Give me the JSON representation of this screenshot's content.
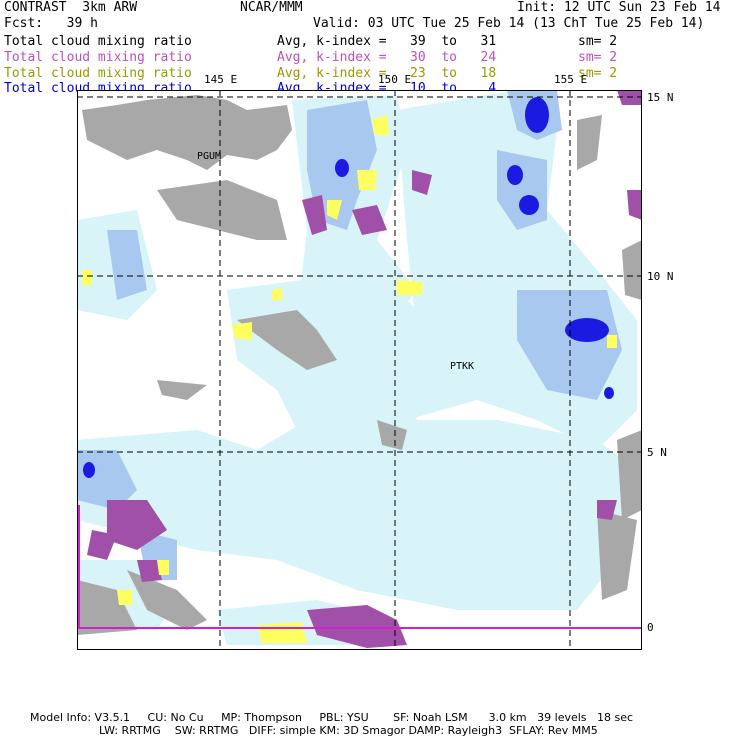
{
  "header": {
    "model": "CONTRAST  3km ARW",
    "org": "NCAR/MMM",
    "init": "Init: 12 UTC Sun 23 Feb 14",
    "fcst": "Fcst:   39 h",
    "valid": "Valid: 03 UTC Tue 25 Feb 14 (13 ChT Tue 25 Feb 14)"
  },
  "fields": [
    {
      "name": "Total cloud mixing ratio",
      "stat": "Avg, k-index =   39  to   31",
      "sm": "sm= 2",
      "color": "#000000"
    },
    {
      "name": "Total cloud mixing ratio",
      "stat": "Avg, k-index =   30  to   24",
      "sm": "sm= 2",
      "color": "#c050c0"
    },
    {
      "name": "Total cloud mixing ratio",
      "stat": "Avg, k-index =   23  to   18",
      "sm": "sm= 2",
      "color": "#9a9a00"
    },
    {
      "name": "Total cloud mixing ratio",
      "stat": "Avg, k-index =   10  to    4",
      "sm": "",
      "color": "#0000e0"
    }
  ],
  "map": {
    "lon_labels": [
      "145 E",
      "150 E",
      "155 E"
    ],
    "lat_labels": [
      "15 N",
      "10 N",
      "5 N",
      "0"
    ],
    "stations": [
      "PGUM",
      "PTKK"
    ],
    "colors": {
      "gray": "#a8a8a8",
      "light_blue": "#d8f4f8",
      "blue": "#a8c8f0",
      "dark_blue": "#1a1ae0",
      "purple": "#a050a8",
      "yellow": "#ffff60",
      "magenta_box": "#d020d0"
    }
  },
  "footer": {
    "line1": "Model Info: V3.5.1     CU: No Cu     MP: Thompson     PBL: YSU       SF: Noah LSM      3.0 km   39 levels   18 sec",
    "line2": "LW: RRTMG    SW: RRTMG   DIFF: simple KM: 3D Smagor DAMP: Rayleigh3  SFLAY: Rev MM5"
  }
}
